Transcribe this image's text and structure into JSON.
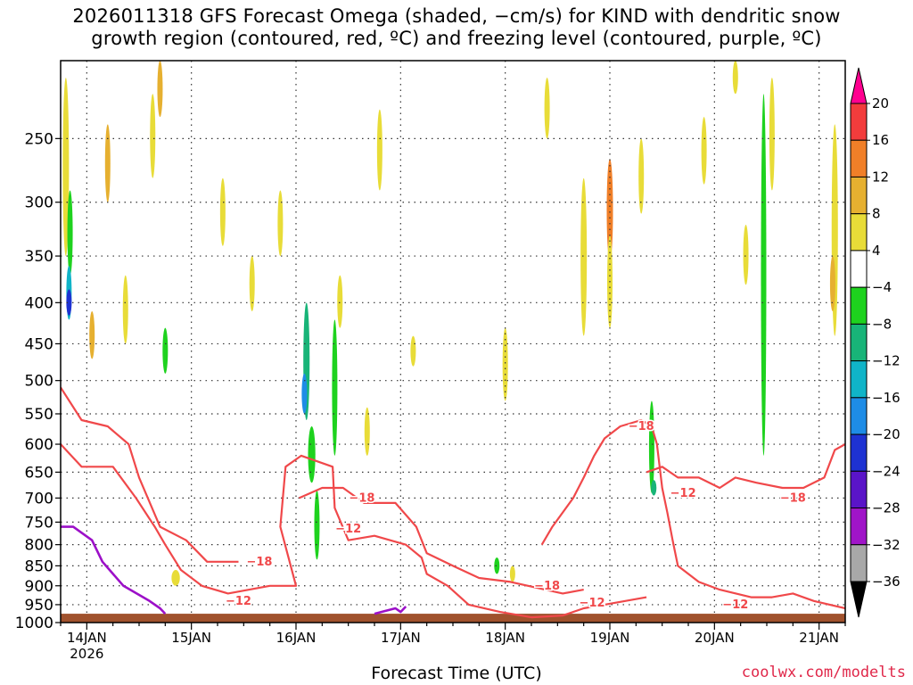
{
  "title_line1": "2026011318 GFS Forecast Omega (shaded, −cm/s) for KIND with dendritic snow",
  "title_line2": "growth region (contoured, red, ºC) and freezing level (contoured, purple, ºC)",
  "credit": "coolwx.com/modelts",
  "chart_data": {
    "type": "heatmap",
    "title": "2026011318 GFS Forecast Omega (shaded, −cm/s) for KIND with dendritic snow growth region (contoured, red, ºC) and freezing level (contoured, purple, ºC)",
    "xlabel": "Forecast Time (UTC)",
    "ylabel": "",
    "x_ticks": [
      {
        "t": 0.25,
        "label": "14JAN",
        "sub": "2026"
      },
      {
        "t": 1.25,
        "label": "15JAN",
        "sub": ""
      },
      {
        "t": 2.25,
        "label": "16JAN",
        "sub": ""
      },
      {
        "t": 3.25,
        "label": "17JAN",
        "sub": ""
      },
      {
        "t": 4.25,
        "label": "18JAN",
        "sub": ""
      },
      {
        "t": 5.25,
        "label": "19JAN",
        "sub": ""
      },
      {
        "t": 6.25,
        "label": "20JAN",
        "sub": ""
      },
      {
        "t": 7.25,
        "label": "21JAN",
        "sub": ""
      }
    ],
    "xlim": [
      0.0,
      7.5
    ],
    "y_ticks": [
      250,
      300,
      350,
      400,
      450,
      500,
      550,
      600,
      650,
      700,
      750,
      800,
      850,
      900,
      950,
      1000
    ],
    "ylim": [
      200,
      1000
    ],
    "y_scale": "log-pressure (inverted)",
    "grid": true,
    "colorbar": {
      "levels": [
        "20",
        "16",
        "12",
        "8",
        "4",
        "−4",
        "−8",
        "−12",
        "−16",
        "−20",
        "−24",
        "−28",
        "−32",
        "−36"
      ],
      "colors": [
        "#ff0090",
        "#f23c3c",
        "#f07f28",
        "#e6b030",
        "#e8dc38",
        "#ffffff",
        "#1ed21e",
        "#18b478",
        "#10b4c8",
        "#1e8ce6",
        "#1e32d2",
        "#5a14c8",
        "#a014c8",
        "#a8a8a8",
        "#000000"
      ]
    },
    "omega_blobs": [
      {
        "t": 0.05,
        "p": 280,
        "w": 0.06,
        "h": 140,
        "v": 6
      },
      {
        "t": 0.09,
        "p": 330,
        "w": 0.05,
        "h": 80,
        "v": -8
      },
      {
        "t": 0.08,
        "p": 390,
        "w": 0.04,
        "h": 60,
        "v": -16
      },
      {
        "t": 0.08,
        "p": 400,
        "w": 0.025,
        "h": 30,
        "v": -24
      },
      {
        "t": 0.45,
        "p": 270,
        "w": 0.04,
        "h": 60,
        "v": 10
      },
      {
        "t": 0.3,
        "p": 440,
        "w": 0.05,
        "h": 60,
        "v": 10
      },
      {
        "t": 0.62,
        "p": 410,
        "w": 0.05,
        "h": 80,
        "v": 6
      },
      {
        "t": 0.95,
        "p": 215,
        "w": 0.05,
        "h": 40,
        "v": 10
      },
      {
        "t": 0.88,
        "p": 250,
        "w": 0.05,
        "h": 60,
        "v": 6
      },
      {
        "t": 1.0,
        "p": 460,
        "w": 0.04,
        "h": 60,
        "v": -8
      },
      {
        "t": 1.1,
        "p": 880,
        "w": 0.08,
        "h": 40,
        "v": 6
      },
      {
        "t": 1.55,
        "p": 310,
        "w": 0.05,
        "h": 60,
        "v": 6
      },
      {
        "t": 1.83,
        "p": 380,
        "w": 0.05,
        "h": 60,
        "v": 6
      },
      {
        "t": 2.1,
        "p": 320,
        "w": 0.05,
        "h": 60,
        "v": 6
      },
      {
        "t": 2.35,
        "p": 480,
        "w": 0.06,
        "h": 160,
        "v": -12
      },
      {
        "t": 2.33,
        "p": 520,
        "w": 0.025,
        "h": 60,
        "v": -20
      },
      {
        "t": 2.4,
        "p": 620,
        "w": 0.07,
        "h": 100,
        "v": -10
      },
      {
        "t": 2.45,
        "p": 760,
        "w": 0.04,
        "h": 150,
        "v": -8
      },
      {
        "t": 2.62,
        "p": 520,
        "w": 0.04,
        "h": 200,
        "v": -8
      },
      {
        "t": 2.67,
        "p": 400,
        "w": 0.03,
        "h": 60,
        "v": 6
      },
      {
        "t": 2.93,
        "p": 580,
        "w": 0.04,
        "h": 80,
        "v": 6
      },
      {
        "t": 3.05,
        "p": 260,
        "w": 0.05,
        "h": 60,
        "v": 6
      },
      {
        "t": 3.37,
        "p": 460,
        "w": 0.03,
        "h": 40,
        "v": 6
      },
      {
        "t": 4.17,
        "p": 850,
        "w": 0.04,
        "h": 40,
        "v": -8
      },
      {
        "t": 4.25,
        "p": 480,
        "w": 0.05,
        "h": 100,
        "v": 6
      },
      {
        "t": 4.32,
        "p": 870,
        "w": 0.05,
        "h": 40,
        "v": 6
      },
      {
        "t": 4.65,
        "p": 230,
        "w": 0.04,
        "h": 40,
        "v": 6
      },
      {
        "t": 5.0,
        "p": 360,
        "w": 0.06,
        "h": 160,
        "v": 6
      },
      {
        "t": 5.25,
        "p": 310,
        "w": 0.06,
        "h": 90,
        "v": 12
      },
      {
        "t": 5.25,
        "p": 380,
        "w": 0.05,
        "h": 100,
        "v": 6
      },
      {
        "t": 5.55,
        "p": 280,
        "w": 0.04,
        "h": 60,
        "v": 6
      },
      {
        "t": 5.65,
        "p": 610,
        "w": 0.03,
        "h": 160,
        "v": -8
      },
      {
        "t": 5.67,
        "p": 680,
        "w": 0.02,
        "h": 30,
        "v": -12
      },
      {
        "t": 6.15,
        "p": 260,
        "w": 0.05,
        "h": 50,
        "v": 6
      },
      {
        "t": 6.45,
        "p": 200,
        "w": 0.05,
        "h": 40,
        "v": 6
      },
      {
        "t": 6.55,
        "p": 350,
        "w": 0.05,
        "h": 60,
        "v": 6
      },
      {
        "t": 6.72,
        "p": 420,
        "w": 0.05,
        "h": 400,
        "v": -8
      },
      {
        "t": 6.8,
        "p": 250,
        "w": 0.04,
        "h": 80,
        "v": 6
      },
      {
        "t": 7.4,
        "p": 340,
        "w": 0.06,
        "h": 200,
        "v": 6
      },
      {
        "t": 7.38,
        "p": 380,
        "w": 0.03,
        "h": 60,
        "v": 10
      }
    ],
    "contours": [
      {
        "name": "−12",
        "color": "#f0484a",
        "points": [
          [
            0.0,
            600
          ],
          [
            0.2,
            640
          ],
          [
            0.5,
            640
          ],
          [
            0.72,
            700
          ],
          [
            0.9,
            760
          ],
          [
            1.0,
            800
          ],
          [
            1.15,
            860
          ],
          [
            1.35,
            900
          ],
          [
            1.6,
            920
          ],
          [
            2.0,
            900
          ],
          [
            2.25,
            900
          ],
          [
            2.1,
            760
          ],
          [
            2.15,
            640
          ],
          [
            2.3,
            620
          ],
          [
            2.6,
            640
          ],
          [
            2.62,
            720
          ],
          [
            2.75,
            790
          ],
          [
            3.0,
            780
          ],
          [
            3.3,
            800
          ],
          [
            3.45,
            830
          ],
          [
            3.5,
            870
          ],
          [
            3.7,
            900
          ],
          [
            3.9,
            950
          ],
          [
            4.2,
            970
          ],
          [
            4.5,
            985
          ],
          [
            4.8,
            980
          ],
          [
            5.0,
            960
          ],
          [
            5.2,
            950
          ],
          [
            5.6,
            930
          ]
        ]
      },
      {
        "name": "−18",
        "color": "#f0484a",
        "points": [
          [
            0.0,
            510
          ],
          [
            0.2,
            560
          ],
          [
            0.45,
            570
          ],
          [
            0.65,
            600
          ],
          [
            0.75,
            660
          ],
          [
            0.95,
            760
          ],
          [
            1.2,
            790
          ],
          [
            1.4,
            840
          ],
          [
            1.7,
            840
          ]
        ]
      },
      {
        "name": "−18",
        "color": "#f0484a",
        "points": [
          [
            2.28,
            700
          ],
          [
            2.5,
            680
          ],
          [
            2.7,
            680
          ],
          [
            2.9,
            710
          ],
          [
            3.2,
            710
          ],
          [
            3.4,
            760
          ],
          [
            3.5,
            820
          ],
          [
            3.75,
            850
          ],
          [
            4.0,
            880
          ],
          [
            4.3,
            890
          ],
          [
            4.8,
            920
          ],
          [
            5.0,
            910
          ]
        ]
      },
      {
        "name": "−18",
        "color": "#f0484a",
        "points": [
          [
            4.6,
            800
          ],
          [
            4.7,
            760
          ],
          [
            4.9,
            700
          ],
          [
            5.0,
            660
          ],
          [
            5.1,
            620
          ],
          [
            5.2,
            590
          ],
          [
            5.35,
            570
          ],
          [
            5.55,
            560
          ],
          [
            5.65,
            570
          ],
          [
            5.7,
            600
          ],
          [
            5.75,
            680
          ],
          [
            5.8,
            730
          ],
          [
            5.85,
            790
          ],
          [
            5.9,
            850
          ],
          [
            6.1,
            890
          ],
          [
            6.3,
            910
          ],
          [
            6.6,
            930
          ],
          [
            6.8,
            930
          ],
          [
            7.0,
            920
          ],
          [
            7.2,
            940
          ],
          [
            7.5,
            960
          ]
        ]
      },
      {
        "name": "−12",
        "color": "#f0484a",
        "points": [
          [
            5.6,
            650
          ],
          [
            5.75,
            640
          ],
          [
            5.9,
            660
          ],
          [
            6.1,
            660
          ],
          [
            6.3,
            680
          ],
          [
            6.45,
            660
          ],
          [
            6.65,
            670
          ],
          [
            6.9,
            680
          ],
          [
            7.1,
            680
          ],
          [
            7.3,
            660
          ],
          [
            7.4,
            610
          ],
          [
            7.5,
            600
          ]
        ]
      }
    ],
    "contour_labels": [
      {
        "t": 1.9,
        "p": 840,
        "text": "−18"
      },
      {
        "t": 1.7,
        "p": 940,
        "text": "−12"
      },
      {
        "t": 2.88,
        "p": 700,
        "text": "−18"
      },
      {
        "t": 2.75,
        "p": 765,
        "text": "−12"
      },
      {
        "t": 4.65,
        "p": 900,
        "text": "−18"
      },
      {
        "t": 5.08,
        "p": 945,
        "text": "−12"
      },
      {
        "t": 5.55,
        "p": 570,
        "text": "−18"
      },
      {
        "t": 5.95,
        "p": 690,
        "text": "−12"
      },
      {
        "t": 7.0,
        "p": 700,
        "text": "−18"
      },
      {
        "t": 6.45,
        "p": 950,
        "text": "−12"
      }
    ],
    "freezing_level": {
      "color": "#9c10c8",
      "segments": [
        [
          [
            0.0,
            760
          ],
          [
            0.12,
            760
          ],
          [
            0.3,
            790
          ],
          [
            0.4,
            840
          ],
          [
            0.6,
            900
          ],
          [
            0.85,
            940
          ],
          [
            0.95,
            960
          ],
          [
            1.0,
            975
          ]
        ],
        [
          [
            3.0,
            975
          ],
          [
            3.2,
            960
          ],
          [
            3.25,
            970
          ],
          [
            3.3,
            955
          ]
        ]
      ]
    },
    "terrain": {
      "color": "#a0522d",
      "p": 975
    }
  }
}
